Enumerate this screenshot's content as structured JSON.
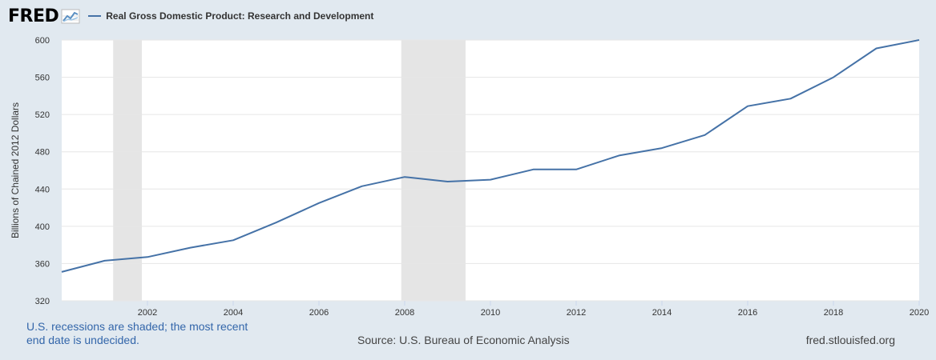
{
  "header": {
    "logo_text": "FRED",
    "logo_icon": "line-chart-icon",
    "series_title": "Real Gross Domestic Product: Research and Development"
  },
  "footer": {
    "note": "U.S. recessions are shaded; the most recent end date is undecided.",
    "source": "Source: U.S. Bureau of Economic Analysis",
    "site": "fred.stlouisfed.org"
  },
  "chart_data": {
    "type": "line",
    "ylabel": "Billions of Chained 2012 Dollars",
    "xlim": [
      2000,
      2020
    ],
    "ylim": [
      320,
      600
    ],
    "x_ticks": [
      2002,
      2004,
      2006,
      2008,
      2010,
      2012,
      2014,
      2016,
      2018,
      2020
    ],
    "y_ticks": [
      320,
      360,
      400,
      440,
      480,
      520,
      560,
      600
    ],
    "grid": true,
    "recessions": [
      [
        2001.2,
        2001.87
      ],
      [
        2007.92,
        2009.42
      ]
    ],
    "colors": {
      "line": "#4572a7",
      "recession": "#e5e5e5",
      "grid": "#e6e6e6"
    },
    "series": [
      {
        "name": "Real Gross Domestic Product: Research and Development",
        "x": [
          2000,
          2001,
          2002,
          2003,
          2004,
          2005,
          2006,
          2007,
          2008,
          2009,
          2010,
          2011,
          2012,
          2013,
          2014,
          2015,
          2016,
          2017,
          2018,
          2019,
          2020
        ],
        "values": [
          351,
          363,
          367,
          377,
          385,
          404,
          425,
          443,
          453,
          448,
          450,
          461,
          461,
          476,
          484,
          498,
          529,
          537,
          560,
          591,
          600
        ]
      }
    ]
  }
}
